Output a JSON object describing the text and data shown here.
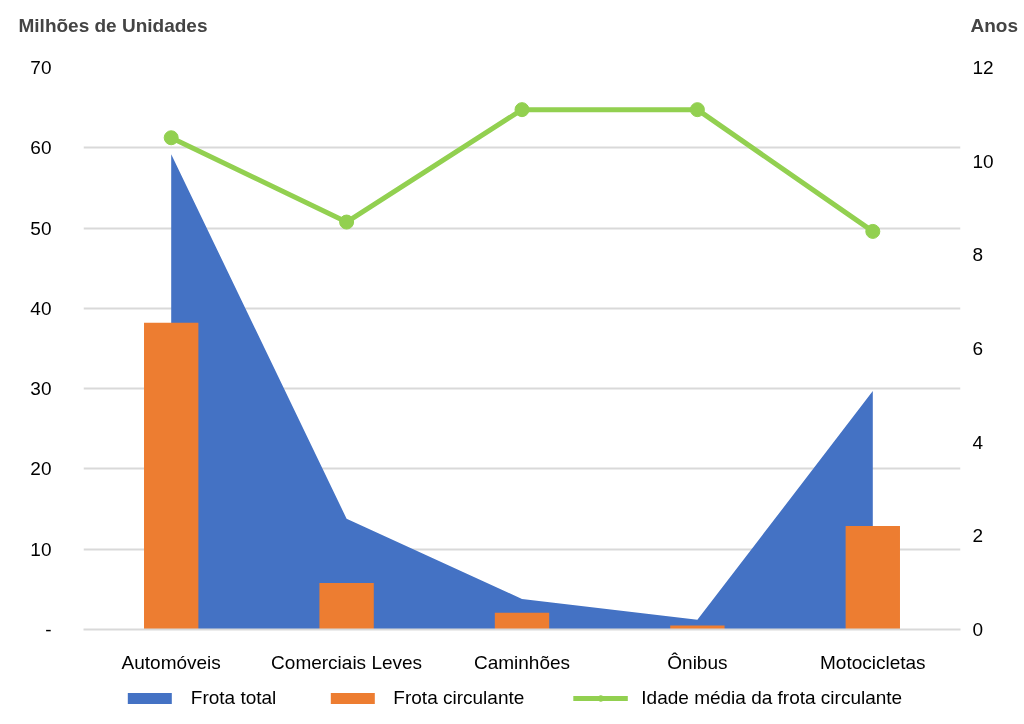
{
  "chart_data": {
    "type": "bar",
    "ylabel": "Milhões de Unidades",
    "y2label": "Anos",
    "categories": [
      "Automóveis",
      "Comerciais Leves",
      "Caminhões",
      "Ônibus",
      "Motocicletas"
    ],
    "series": [
      {
        "name": "Frota total",
        "type": "area",
        "color": "#4472c4",
        "values": [
          59.2,
          13.8,
          3.8,
          1.2,
          29.7
        ]
      },
      {
        "name": "Frota circulante",
        "color": "#ed7d31",
        "values": [
          38.2,
          5.8,
          2.1,
          0.5,
          12.9
        ]
      },
      {
        "name": "Idade média da frota circulante",
        "type": "line",
        "axis": "y2",
        "marker": "circle",
        "color": "#92d050",
        "values": [
          10.5,
          8.7,
          11.1,
          11.1,
          8.5
        ]
      }
    ],
    "ylim": [
      0,
      70
    ],
    "yticks": [
      {
        "value": 0,
        "label": "-"
      },
      10,
      20,
      30,
      40,
      50,
      60,
      70
    ],
    "y2lim": [
      0,
      12
    ],
    "y2ticks": [
      0,
      2,
      4,
      6,
      8,
      10,
      12
    ],
    "grid": "y",
    "legend": "bottom"
  }
}
